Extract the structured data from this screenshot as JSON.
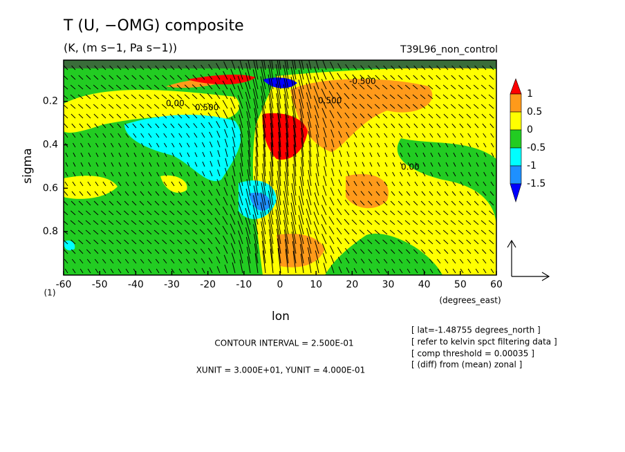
{
  "chart_data": {
    "type": "contour",
    "title": "T (U, −OMG) composite",
    "subtitle": "(K, (m s−1, Pa s−1))",
    "run_name": "T39L96_non_control",
    "x_label": "lon",
    "x_unit": "(degrees_east)",
    "y_label": "sigma",
    "vector_scale_label": "(1)",
    "xlim": [
      -60,
      60
    ],
    "xticks": [
      -60,
      -50,
      -40,
      -30,
      -20,
      -10,
      0,
      10,
      20,
      30,
      40,
      50,
      60
    ],
    "ylim": [
      1,
      0.01
    ],
    "yticks": [
      0.2,
      0.4,
      0.6,
      0.8
    ],
    "colorbar": {
      "levels": [
        1,
        0.5,
        0,
        -0.5,
        -1,
        -1.5
      ],
      "colors": [
        "#ff0000",
        "#ff9a1a",
        "#ffff00",
        "#22cc22",
        "#00ffff",
        "#1e90ff",
        "#0000ff"
      ]
    },
    "contour_labels": [
      "0.500",
      "0.00",
      "-0.500",
      "0.500",
      "0.00"
    ],
    "footer": [
      "CONTOUR INTERVAL = 2.500E-01",
      "XUNIT = 3.000E+01, YUNIT = 4.000E-01"
    ],
    "info": [
      "[ lat=-1.48755 degrees_north ]",
      "[ refer to kelvin spct filtering data ]",
      "[ comp threshold = 0.00035 ]",
      "[ (diff) from (mean) zonal ]"
    ]
  }
}
